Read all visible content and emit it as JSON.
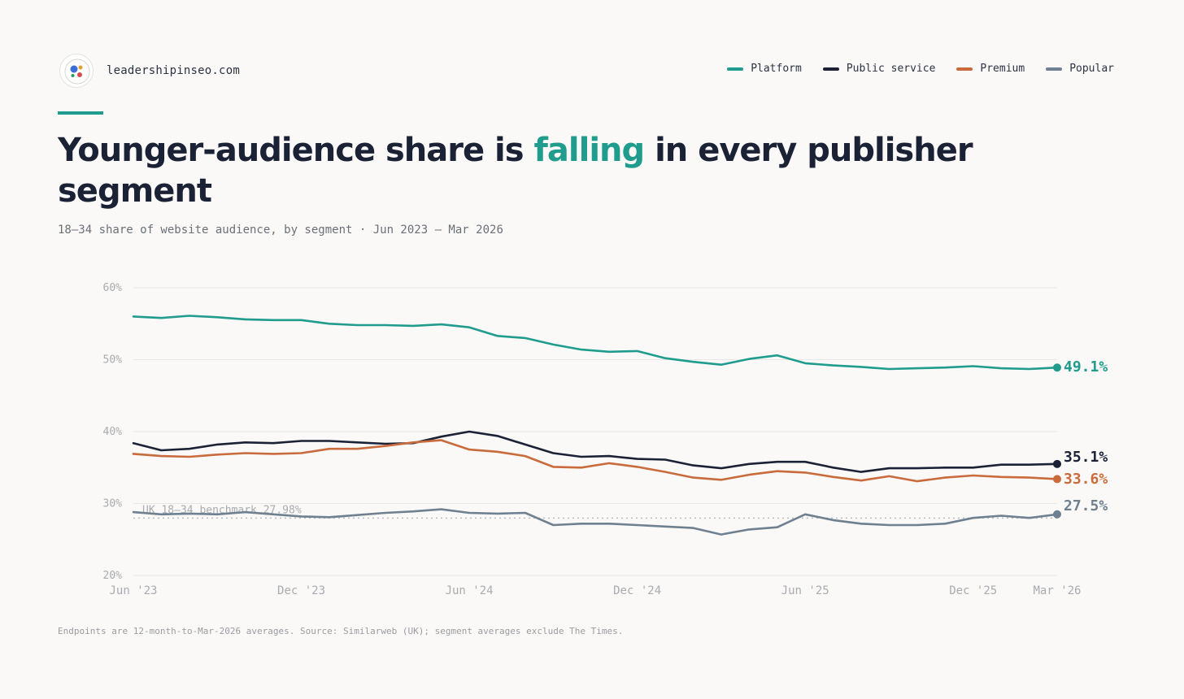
{
  "brand": {
    "name": "leadershipinseo.com",
    "logo_icon": "audience-dots-logo-icon"
  },
  "legend": [
    {
      "label": "Platform",
      "color": "#1f9c8e"
    },
    {
      "label": "Public service",
      "color": "#1b2236"
    },
    {
      "label": "Premium",
      "color": "#c96b3c"
    },
    {
      "label": "Popular",
      "color": "#6f8091"
    }
  ],
  "headline": {
    "before": "Younger-audience share is ",
    "highlight": "falling",
    "after": " in every publisher segment"
  },
  "subtitle": "18–34 share of website audience, by segment · Jun 2023 – Mar 2026",
  "footnote": "Endpoints are 12-month-to-Mar-2026 averages. Source: Similarweb (UK); segment averages exclude The Times.",
  "chart_data": {
    "type": "line",
    "title": "Younger-audience share is falling in every publisher segment",
    "subtitle": "18–34 share of website audience, by segment · Jun 2023 – Mar 2026",
    "x": [
      "Jun 2023",
      "Jul 2023",
      "Aug 2023",
      "Sep 2023",
      "Oct 2023",
      "Nov 2023",
      "Dec 2023",
      "Jan 2024",
      "Feb 2024",
      "Mar 2024",
      "Apr 2024",
      "May 2024",
      "Jun 2024",
      "Jul 2024",
      "Aug 2024",
      "Sep 2024",
      "Oct 2024",
      "Nov 2024",
      "Dec 2024",
      "Jan 2025",
      "Feb 2025",
      "Mar 2025",
      "Apr 2025",
      "May 2025",
      "Jun 2025",
      "Jul 2025",
      "Aug 2025",
      "Sep 2025",
      "Oct 2025",
      "Nov 2025",
      "Dec 2025",
      "Jan 2026",
      "Feb 2026",
      "Mar 2026"
    ],
    "x_tick_labels": [
      {
        "x": "Jun 2023",
        "label": "Jun '23"
      },
      {
        "x": "Dec 2023",
        "label": "Dec '23"
      },
      {
        "x": "Jun 2024",
        "label": "Jun '24"
      },
      {
        "x": "Dec 2024",
        "label": "Dec '24"
      },
      {
        "x": "Jun 2025",
        "label": "Jun '25"
      },
      {
        "x": "Dec 2025",
        "label": "Dec '25"
      },
      {
        "x": "Mar 2026",
        "label": "Mar '26"
      }
    ],
    "ylim": [
      20,
      60
    ],
    "y_ticks": [
      20,
      30,
      40,
      50,
      60
    ],
    "y_tick_labels": [
      "20%",
      "30%",
      "40%",
      "50%",
      "60%"
    ],
    "grid": true,
    "legend_position": "top-right",
    "series": [
      {
        "name": "Platform",
        "color": "#1f9c8e",
        "values": [
          56.0,
          55.8,
          56.1,
          55.9,
          55.6,
          55.5,
          55.5,
          55.0,
          54.8,
          54.8,
          54.7,
          54.9,
          54.5,
          53.3,
          53.0,
          52.1,
          51.4,
          51.1,
          51.2,
          50.2,
          49.7,
          49.3,
          50.1,
          50.6,
          49.5,
          49.2,
          49.0,
          48.7,
          48.8,
          48.9,
          49.1,
          48.8,
          48.7,
          48.9
        ],
        "end_label": "49.1%"
      },
      {
        "name": "Public service",
        "color": "#1b2236",
        "values": [
          38.4,
          37.4,
          37.6,
          38.2,
          38.5,
          38.4,
          38.7,
          38.7,
          38.5,
          38.3,
          38.4,
          39.3,
          40.0,
          39.4,
          38.2,
          37.0,
          36.5,
          36.6,
          36.2,
          36.1,
          35.3,
          34.9,
          35.5,
          35.8,
          35.8,
          35.0,
          34.4,
          34.9,
          34.9,
          35.0,
          35.0,
          35.4,
          35.4,
          35.5
        ],
        "end_label": "35.1%"
      },
      {
        "name": "Premium",
        "color": "#c96b3c",
        "values": [
          36.9,
          36.6,
          36.5,
          36.8,
          37.0,
          36.9,
          37.0,
          37.6,
          37.6,
          38.0,
          38.5,
          38.8,
          37.5,
          37.2,
          36.6,
          35.1,
          35.0,
          35.6,
          35.1,
          34.4,
          33.6,
          33.3,
          34.0,
          34.5,
          34.3,
          33.7,
          33.2,
          33.8,
          33.1,
          33.6,
          33.9,
          33.7,
          33.6,
          33.4
        ],
        "end_label": "33.6%"
      },
      {
        "name": "Popular",
        "color": "#6f8091",
        "values": [
          28.8,
          28.5,
          28.6,
          28.5,
          28.8,
          28.5,
          28.2,
          28.1,
          28.4,
          28.7,
          28.9,
          29.2,
          28.7,
          28.6,
          28.7,
          27.0,
          27.2,
          27.2,
          27.0,
          26.8,
          26.6,
          25.7,
          26.4,
          26.7,
          28.5,
          27.7,
          27.2,
          27.0,
          27.0,
          27.2,
          28.0,
          28.3,
          28.0,
          28.5
        ],
        "end_label": "27.5%"
      }
    ],
    "annotations": [
      {
        "type": "reference-line",
        "y": 27.98,
        "label": "UK 18–34 benchmark 27.98%",
        "style": "dotted"
      }
    ]
  }
}
